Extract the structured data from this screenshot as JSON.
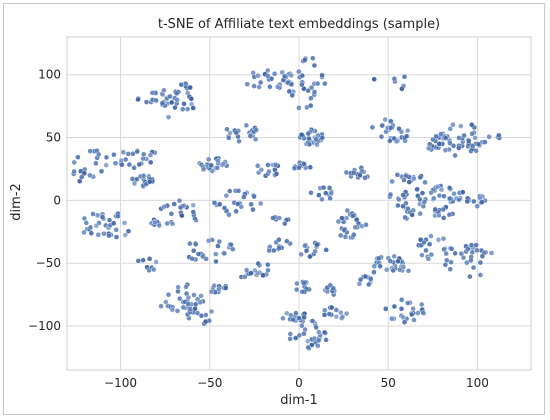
{
  "chart_data": {
    "type": "scatter",
    "title": "t-SNE of Affiliate text embeddings (sample)",
    "xlabel": "dim-1",
    "ylabel": "dim-2",
    "xlim": [
      -130,
      130
    ],
    "ylim": [
      -135,
      130
    ],
    "xticks": [
      -100,
      -50,
      0,
      50,
      100
    ],
    "yticks": [
      -100,
      -50,
      0,
      50,
      100
    ],
    "grid": true,
    "point_colors": [
      "#4c72b0",
      "#4c72b0",
      "#5b7fb8",
      "#6f8fc4",
      "#3f63a3"
    ],
    "clusters": [
      {
        "cx": -78,
        "cy": 83,
        "rx": 13,
        "ry": 9,
        "n": 16
      },
      {
        "cx": -68,
        "cy": 79,
        "rx": 10,
        "ry": 16,
        "n": 30
      },
      {
        "cx": -17,
        "cy": 96,
        "rx": 14,
        "ry": 8,
        "n": 24
      },
      {
        "cx": 3,
        "cy": 93,
        "rx": 12,
        "ry": 22,
        "n": 34
      },
      {
        "cx": 43,
        "cy": 96,
        "rx": 1,
        "ry": 1,
        "n": 2
      },
      {
        "cx": 55,
        "cy": 96,
        "rx": 5,
        "ry": 9,
        "n": 5
      },
      {
        "cx": -32,
        "cy": 53,
        "rx": 10,
        "ry": 7,
        "n": 20
      },
      {
        "cx": 7,
        "cy": 50,
        "rx": 7,
        "ry": 7,
        "n": 28
      },
      {
        "cx": 52,
        "cy": 55,
        "rx": 12,
        "ry": 10,
        "n": 26
      },
      {
        "cx": 96,
        "cy": 51,
        "rx": 18,
        "ry": 12,
        "n": 30
      },
      {
        "cx": 78,
        "cy": 47,
        "rx": 6,
        "ry": 10,
        "n": 14
      },
      {
        "cx": 86,
        "cy": 44,
        "rx": 14,
        "ry": 10,
        "n": 18
      },
      {
        "cx": -117,
        "cy": 27,
        "rx": 11,
        "ry": 14,
        "n": 20
      },
      {
        "cx": -93,
        "cy": 34,
        "rx": 14,
        "ry": 9,
        "n": 22
      },
      {
        "cx": -88,
        "cy": 16,
        "rx": 6,
        "ry": 5,
        "n": 18
      },
      {
        "cx": -48,
        "cy": 28,
        "rx": 8,
        "ry": 6,
        "n": 22
      },
      {
        "cx": -17,
        "cy": 25,
        "rx": 7,
        "ry": 6,
        "n": 14
      },
      {
        "cx": 2,
        "cy": 27,
        "rx": 5,
        "ry": 4,
        "n": 10
      },
      {
        "cx": 33,
        "cy": 22,
        "rx": 7,
        "ry": 5,
        "n": 14
      },
      {
        "cx": 60,
        "cy": 16,
        "rx": 12,
        "ry": 5,
        "n": 16
      },
      {
        "cx": -80,
        "cy": -17,
        "rx": 4,
        "ry": 4,
        "n": 8
      },
      {
        "cx": -35,
        "cy": -1,
        "rx": 14,
        "ry": 11,
        "n": 24
      },
      {
        "cx": 13,
        "cy": 6,
        "rx": 7,
        "ry": 6,
        "n": 12
      },
      {
        "cx": 63,
        "cy": 1,
        "rx": 14,
        "ry": 8,
        "n": 22
      },
      {
        "cx": 83,
        "cy": 5,
        "rx": 10,
        "ry": 8,
        "n": 22
      },
      {
        "cx": 100,
        "cy": -1,
        "rx": 7,
        "ry": 5,
        "n": 12
      },
      {
        "cx": -108,
        "cy": -20,
        "rx": 14,
        "ry": 12,
        "n": 32
      },
      {
        "cx": -67,
        "cy": -10,
        "rx": 11,
        "ry": 11,
        "n": 22
      },
      {
        "cx": -10,
        "cy": -15,
        "rx": 5,
        "ry": 4,
        "n": 8
      },
      {
        "cx": 28,
        "cy": -18,
        "rx": 10,
        "ry": 12,
        "n": 26
      },
      {
        "cx": 62,
        "cy": -11,
        "rx": 6,
        "ry": 5,
        "n": 10
      },
      {
        "cx": 80,
        "cy": -10,
        "rx": 7,
        "ry": 5,
        "n": 12
      },
      {
        "cx": -50,
        "cy": -40,
        "rx": 14,
        "ry": 10,
        "n": 24
      },
      {
        "cx": -11,
        "cy": -37,
        "rx": 7,
        "ry": 6,
        "n": 12
      },
      {
        "cx": 8,
        "cy": -40,
        "rx": 8,
        "ry": 7,
        "n": 14
      },
      {
        "cx": -85,
        "cy": -51,
        "rx": 6,
        "ry": 6,
        "n": 8
      },
      {
        "cx": -21,
        "cy": -55,
        "rx": 7,
        "ry": 5,
        "n": 10
      },
      {
        "cx": 52,
        "cy": -53,
        "rx": 12,
        "ry": 10,
        "n": 26
      },
      {
        "cx": 75,
        "cy": -38,
        "rx": 10,
        "ry": 10,
        "n": 16
      },
      {
        "cx": 93,
        "cy": -48,
        "rx": 17,
        "ry": 14,
        "n": 32
      },
      {
        "cx": -31,
        "cy": -60,
        "rx": 5,
        "ry": 5,
        "n": 6
      },
      {
        "cx": 3,
        "cy": -68,
        "rx": 6,
        "ry": 5,
        "n": 12
      },
      {
        "cx": 20,
        "cy": -70,
        "rx": 6,
        "ry": 5,
        "n": 10
      },
      {
        "cx": -66,
        "cy": -78,
        "rx": 14,
        "ry": 12,
        "n": 30
      },
      {
        "cx": -57,
        "cy": -90,
        "rx": 10,
        "ry": 10,
        "n": 16
      },
      {
        "cx": -45,
        "cy": -71,
        "rx": 6,
        "ry": 4,
        "n": 12
      },
      {
        "cx": 20,
        "cy": -90,
        "rx": 7,
        "ry": 5,
        "n": 12
      },
      {
        "cx": 5,
        "cy": -104,
        "rx": 12,
        "ry": 14,
        "n": 34
      },
      {
        "cx": -2,
        "cy": -93,
        "rx": 8,
        "ry": 4,
        "n": 12
      },
      {
        "cx": 59,
        "cy": -87,
        "rx": 12,
        "ry": 10,
        "n": 24
      },
      {
        "cx": 38,
        "cy": -65,
        "rx": 5,
        "ry": 5,
        "n": 8
      }
    ]
  }
}
